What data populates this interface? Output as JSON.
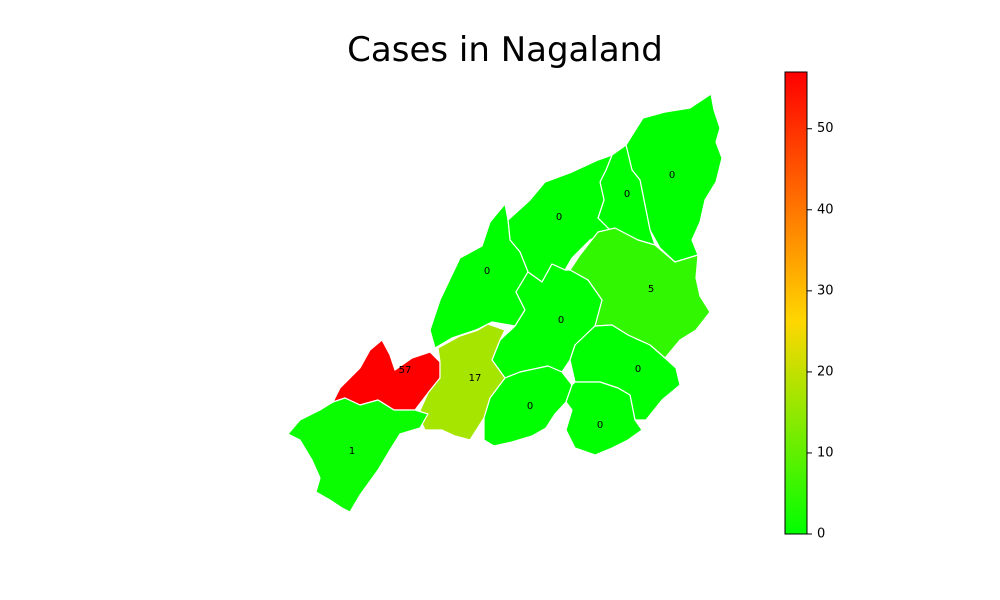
{
  "title": "Cases in Nagaland",
  "chart_data": {
    "type": "choropleth",
    "title": "Cases in Nagaland",
    "districts": [
      {
        "value": 0,
        "label": "0"
      },
      {
        "value": 0,
        "label": "0"
      },
      {
        "value": 0,
        "label": "0"
      },
      {
        "value": 0,
        "label": "0"
      },
      {
        "value": 5,
        "label": "5"
      },
      {
        "value": 0,
        "label": "0"
      },
      {
        "value": 0,
        "label": "0"
      },
      {
        "value": 57,
        "label": "57"
      },
      {
        "value": 17,
        "label": "17"
      },
      {
        "value": 0,
        "label": "0"
      },
      {
        "value": 1,
        "label": "1"
      },
      {
        "value": 0,
        "label": "0"
      }
    ],
    "colorbar": {
      "min": 0,
      "max": 57,
      "ticks": [
        0,
        10,
        20,
        30,
        40,
        50
      ],
      "tick_labels": [
        "0",
        "10",
        "20",
        "30",
        "40",
        "50"
      ],
      "colors": [
        "#00ff00",
        "#ffd700",
        "#ff0000"
      ]
    }
  }
}
